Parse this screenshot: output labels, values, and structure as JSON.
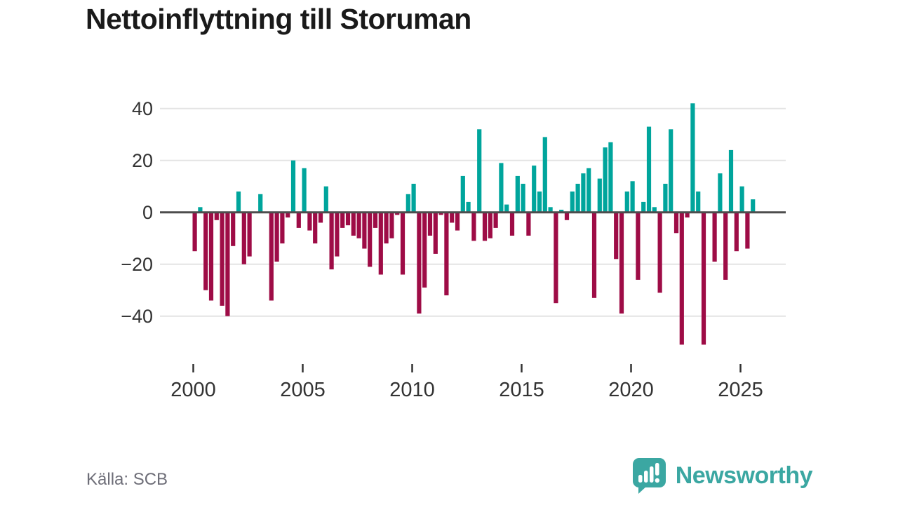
{
  "title": "Nettoinflyttning till Storuman",
  "source": {
    "label": "Källa: SCB"
  },
  "branding": {
    "name": "Newsworthy",
    "logo_icon": "bar-chart-speech-bubble-icon"
  },
  "colors": {
    "positive": "#00a59c",
    "negative": "#9e0c46",
    "axis_text": "#333333",
    "gridline": "#e4e4e4",
    "zero_line": "#4d4d4d",
    "tick": "#333333",
    "title_text": "#1a1a1a",
    "source_text": "#6e6e78",
    "brand_teal": "#3ba7a2"
  },
  "chart_data": {
    "type": "bar",
    "title": "Nettoinflyttning till Storuman",
    "frequency": "quarterly",
    "x_start": {
      "year": 2000,
      "quarter": 1
    },
    "x_end": {
      "year": 2025,
      "quarter": 3
    },
    "values": [
      -15,
      2,
      -30,
      -34,
      -3,
      -36,
      -40,
      -13,
      8,
      -20,
      -17,
      0,
      7,
      0,
      -34,
      -19,
      -12,
      -2,
      20,
      -6,
      17,
      -7,
      -12,
      -4,
      10,
      -22,
      -17,
      -6,
      -5,
      -9,
      -10,
      -14,
      -21,
      -6,
      -24,
      -12,
      -10,
      -1,
      -24,
      7,
      11,
      -39,
      -29,
      -9,
      -16,
      -1,
      -32,
      -4,
      -7,
      14,
      4,
      -11,
      32,
      -11,
      -10,
      -6,
      19,
      3,
      -9,
      14,
      11,
      -9,
      18,
      8,
      29,
      2,
      -35,
      1,
      -3,
      8,
      11,
      15,
      17,
      -33,
      13,
      25,
      27,
      -18,
      -39,
      8,
      12,
      -26,
      4,
      33,
      2,
      -31,
      11,
      32,
      -8,
      -51,
      -2,
      42,
      8,
      -51,
      0,
      -19,
      15,
      -26,
      24,
      -15,
      10,
      -14,
      5
    ],
    "xticks": [
      2000,
      2005,
      2010,
      2015,
      2020,
      2025
    ],
    "yticks": [
      40,
      20,
      0,
      -20,
      -40
    ],
    "ylim": [
      -55,
      45
    ],
    "grid": "horizontal",
    "legend": "none",
    "positive_color": "#00a59c",
    "negative_color": "#9e0c46"
  }
}
